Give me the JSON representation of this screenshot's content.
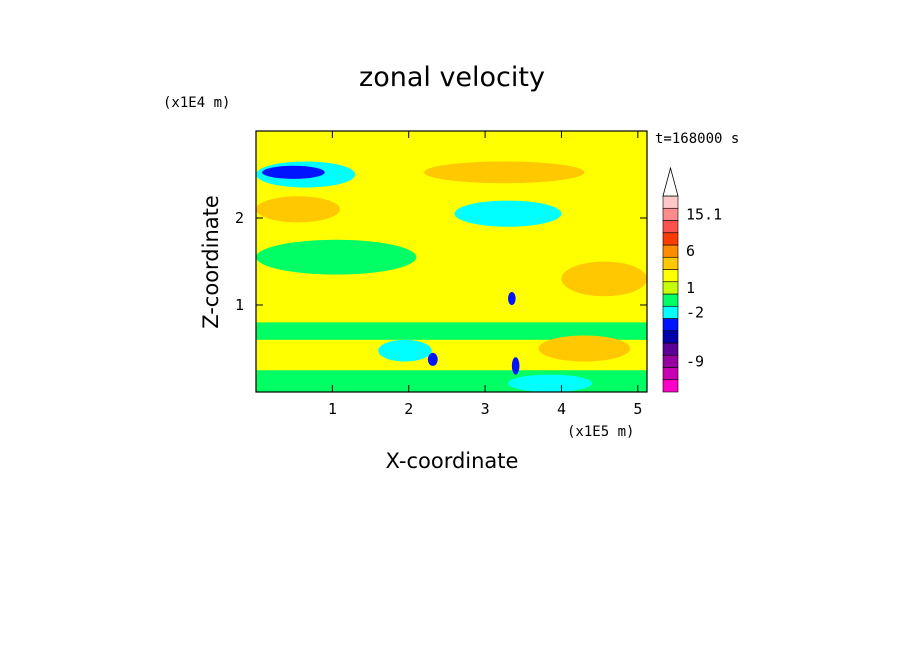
{
  "chart_data": {
    "type": "heatmap",
    "title": "zonal velocity",
    "xlabel": "X-coordinate",
    "ylabel": "Z-coordinate",
    "x_unit": "(x1E5 m)",
    "y_unit": "(x1E4 m)",
    "time_label": "t=168000 s",
    "xlim": [
      0,
      5.12
    ],
    "ylim": [
      0,
      3.0
    ],
    "x_ticks": [
      {
        "value": 1,
        "label": "1"
      },
      {
        "value": 2,
        "label": "2"
      },
      {
        "value": 3,
        "label": "3"
      },
      {
        "value": 4,
        "label": "4"
      },
      {
        "value": 5,
        "label": "5"
      }
    ],
    "y_ticks": [
      {
        "value": 1,
        "label": "1"
      },
      {
        "value": 2,
        "label": "2"
      }
    ],
    "colorbar": {
      "levels": [
        {
          "color": "#ff00c8",
          "label": ""
        },
        {
          "color": "#c800b4",
          "label": ""
        },
        {
          "color": "#9600a0",
          "label": "-9"
        },
        {
          "color": "#5a0096",
          "label": ""
        },
        {
          "color": "#0000aa",
          "label": ""
        },
        {
          "color": "#0014ff",
          "label": ""
        },
        {
          "color": "#00ffff",
          "label": "-2"
        },
        {
          "color": "#00ff64",
          "label": ""
        },
        {
          "color": "#c8ff00",
          "label": "1"
        },
        {
          "color": "#ffff00",
          "label": ""
        },
        {
          "color": "#ffc800",
          "label": ""
        },
        {
          "color": "#ff8c00",
          "label": "6"
        },
        {
          "color": "#ff3c00",
          "label": ""
        },
        {
          "color": "#ff5050",
          "label": ""
        },
        {
          "color": "#ff8c8c",
          "label": "15.1"
        },
        {
          "color": "#ffc8c8",
          "label": ""
        }
      ]
    },
    "fields": [
      {
        "name": "upper-cyan-band",
        "color": "#00ffff",
        "x": [
          0.0,
          1.3
        ],
        "z": [
          2.35,
          2.65
        ]
      },
      {
        "name": "upper-blue-core",
        "color": "#0014ff",
        "x": [
          0.08,
          0.9
        ],
        "z": [
          2.45,
          2.6
        ]
      },
      {
        "name": "upper-orange-band",
        "color": "#ffc800",
        "x": [
          2.2,
          4.3
        ],
        "z": [
          2.4,
          2.65
        ]
      },
      {
        "name": "mid-cyan-patch",
        "color": "#00ffff",
        "x": [
          2.6,
          4.0
        ],
        "z": [
          1.9,
          2.2
        ]
      },
      {
        "name": "left-orange-patch",
        "color": "#ffc800",
        "x": [
          0.0,
          1.1
        ],
        "z": [
          1.95,
          2.25
        ]
      },
      {
        "name": "green-band-1",
        "color": "#00ff64",
        "x": [
          0.0,
          2.1
        ],
        "z": [
          1.35,
          1.75
        ]
      },
      {
        "name": "green-band-2",
        "color": "#00ff64",
        "x": [
          0.0,
          5.12
        ],
        "z": [
          0.6,
          0.8
        ]
      },
      {
        "name": "low-cyan-patch",
        "color": "#00ffff",
        "x": [
          1.6,
          2.3
        ],
        "z": [
          0.35,
          0.6
        ]
      },
      {
        "name": "bottom-green-band",
        "color": "#00ff64",
        "x": [
          0.0,
          5.12
        ],
        "z": [
          0.0,
          0.25
        ]
      },
      {
        "name": "bottom-cyan-patch",
        "color": "#00ffff",
        "x": [
          3.3,
          4.4
        ],
        "z": [
          0.0,
          0.2
        ]
      },
      {
        "name": "right-orange-patch",
        "color": "#ffc800",
        "x": [
          3.7,
          4.9
        ],
        "z": [
          0.35,
          0.65
        ]
      },
      {
        "name": "mid-right-orange",
        "color": "#ffc800",
        "x": [
          4.0,
          5.12
        ],
        "z": [
          1.1,
          1.5
        ]
      },
      {
        "name": "jet-core-1",
        "color": "#0014ff",
        "x": [
          2.25,
          2.38
        ],
        "z": [
          0.3,
          0.45
        ]
      },
      {
        "name": "jet-core-2",
        "color": "#0014ff",
        "x": [
          3.3,
          3.4
        ],
        "z": [
          1.0,
          1.15
        ]
      },
      {
        "name": "jet-core-3",
        "color": "#0014ff",
        "x": [
          3.35,
          3.45
        ],
        "z": [
          0.2,
          0.4
        ]
      }
    ]
  }
}
